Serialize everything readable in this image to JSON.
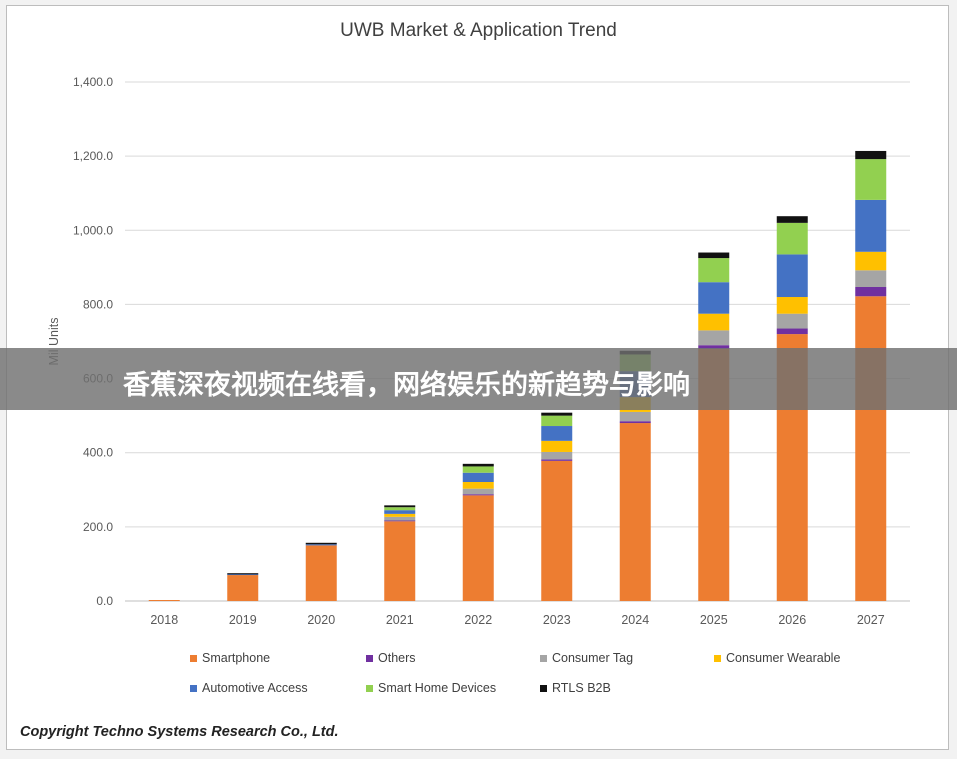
{
  "banner": {
    "text": "香蕉深夜视频在线看，网络娱乐的新趋势与影响"
  },
  "copyright": "Copyright Techno Systems Research Co., Ltd.",
  "colors": {
    "Smartphone": "#ED7D31",
    "Others": "#7030A0",
    "Consumer Tag": "#A5A5A5",
    "Consumer Wearable": "#FFC000",
    "Automotive Access": "#4472C4",
    "Smart Home Devices": "#92D050",
    "RTLS B2B": "#111111"
  },
  "chart_data": {
    "type": "bar",
    "stacked": true,
    "title": "UWB Market & Application Trend",
    "ylabel": "Mil Units",
    "xlabel": "",
    "ylim": [
      0,
      1400
    ],
    "yticks": [
      "0.0",
      "200.0",
      "400.0",
      "600.0",
      "800.0",
      "1,000.0",
      "1,200.0",
      "1,400.0"
    ],
    "grid": true,
    "legend_position": "bottom",
    "categories": [
      "2018",
      "2019",
      "2020",
      "2021",
      "2022",
      "2023",
      "2024",
      "2025",
      "2026",
      "2027"
    ],
    "series": [
      {
        "name": "Smartphone",
        "values": [
          2,
          70,
          150,
          215,
          285,
          378,
          480,
          680,
          720,
          822
        ]
      },
      {
        "name": "Others",
        "values": [
          0,
          0,
          0,
          2,
          3,
          4,
          5,
          10,
          15,
          25
        ]
      },
      {
        "name": "Consumer Tag",
        "values": [
          0,
          0,
          0,
          10,
          15,
          20,
          25,
          40,
          40,
          45
        ]
      },
      {
        "name": "Consumer Wearable",
        "values": [
          0,
          0,
          0,
          8,
          18,
          30,
          40,
          45,
          45,
          50
        ]
      },
      {
        "name": "Automotive Access",
        "values": [
          0,
          2,
          3,
          10,
          25,
          40,
          70,
          85,
          115,
          140
        ]
      },
      {
        "name": "Smart Home Devices",
        "values": [
          0,
          0,
          0,
          8,
          17,
          28,
          45,
          65,
          85,
          110
        ]
      },
      {
        "name": "RTLS B2B",
        "values": [
          0,
          3,
          4,
          5,
          7,
          8,
          10,
          15,
          18,
          22
        ]
      }
    ]
  }
}
